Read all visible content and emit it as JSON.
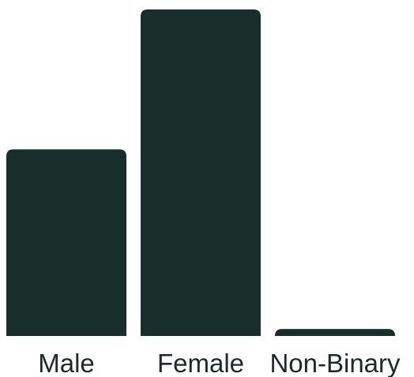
{
  "chart_data": {
    "type": "bar",
    "categories": [
      "Male",
      "Female",
      "Non-Binary"
    ],
    "values": [
      40,
      70,
      1.5
    ],
    "ylim": [
      0,
      70
    ],
    "grid": false,
    "legend": "none",
    "bar_color": "#182e2a",
    "label_color": "#1b2a28"
  }
}
